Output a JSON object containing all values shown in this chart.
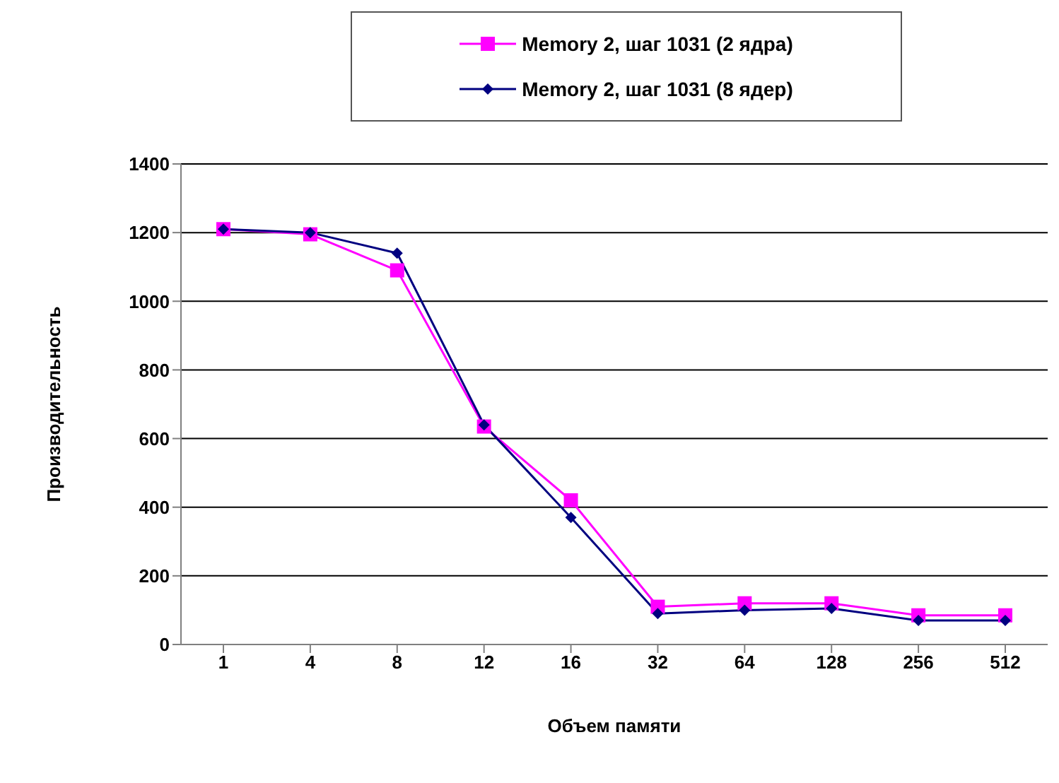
{
  "chart_data": {
    "type": "line",
    "xlabel": "Объем памяти",
    "ylabel": "Производительность",
    "categories": [
      "1",
      "4",
      "8",
      "12",
      "16",
      "32",
      "64",
      "128",
      "256",
      "512"
    ],
    "series": [
      {
        "name": "Memory 2, шаг 1031 (2 ядра)",
        "color": "#ff00ff",
        "marker": "square",
        "values": [
          1210,
          1195,
          1090,
          635,
          420,
          110,
          120,
          120,
          85,
          85
        ]
      },
      {
        "name": "Memory 2, шаг 1031 (8 ядер)",
        "color": "#000080",
        "marker": "diamond",
        "values": [
          1210,
          1200,
          1140,
          640,
          370,
          90,
          100,
          105,
          70,
          70
        ]
      }
    ],
    "ylim": [
      0,
      1400
    ],
    "yticks": [
      0,
      200,
      400,
      600,
      800,
      1000,
      1200,
      1400
    ],
    "grid": "y",
    "legend": "top"
  }
}
